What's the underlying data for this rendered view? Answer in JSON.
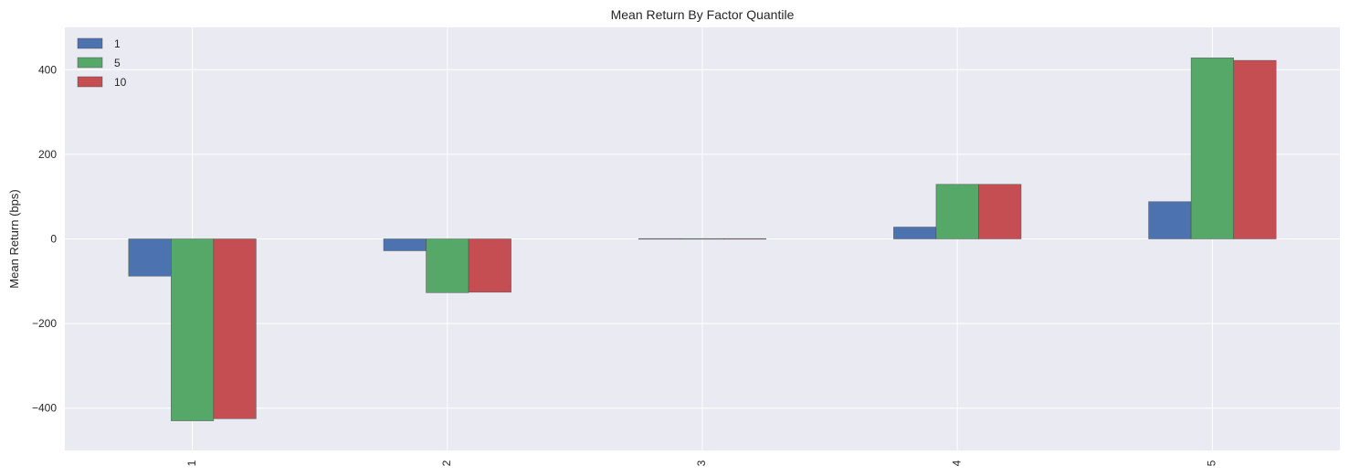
{
  "chart_data": {
    "type": "bar",
    "title": "Mean Return By Factor Quantile",
    "xlabel": "",
    "ylabel": "Mean Return (bps)",
    "categories": [
      "1",
      "2",
      "3",
      "4",
      "5"
    ],
    "series": [
      {
        "name": "1",
        "color": "#4c72b0",
        "values": [
          -88,
          -28,
          0,
          28,
          88
        ]
      },
      {
        "name": "5",
        "color": "#55a868",
        "values": [
          -430,
          -127,
          0,
          129,
          428
        ]
      },
      {
        "name": "10",
        "color": "#c44e52",
        "values": [
          -425,
          -126,
          0,
          129,
          422
        ]
      }
    ],
    "ylim": [
      -500,
      500
    ],
    "yticks": [
      -400,
      -200,
      0,
      200,
      400
    ],
    "ytick_labels": [
      "−400",
      "−200",
      "0",
      "200",
      "400"
    ],
    "grid": true,
    "legend_position": "top-left",
    "x_tick_rotation": "vertical",
    "colors": {
      "plot_background": "#eaeaf2",
      "grid": "#ffffff",
      "bar_edge": "#4a4a4a"
    }
  }
}
